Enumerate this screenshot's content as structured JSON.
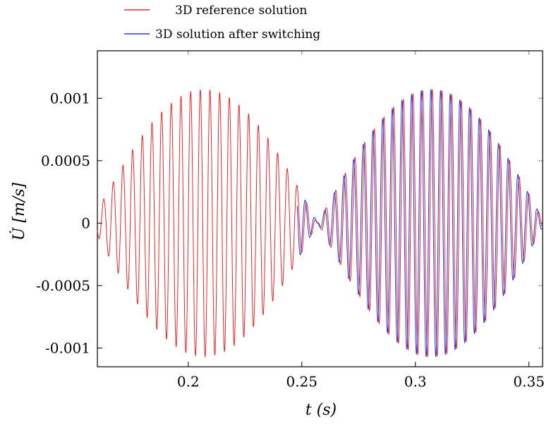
{
  "chart_data": {
    "type": "line",
    "xlabel": "t (s)",
    "ylabel": "U̇ [m/s]",
    "xlim": [
      0.16,
      0.356
    ],
    "ylim": [
      -0.00115,
      0.00138
    ],
    "x_ticks": [
      0.2,
      0.25,
      0.3,
      0.35
    ],
    "x_tick_labels": [
      "0.2",
      "0.25",
      "0.3",
      "0.35"
    ],
    "y_ticks": [
      0.001,
      0.0005,
      0,
      -0.0005,
      -0.001
    ],
    "y_tick_labels": [
      "0.001",
      "0.0005",
      "0",
      "-0.0005",
      "-0.001"
    ],
    "grid": "dotted ticks at top and right",
    "legend_position": "top-left, above plot",
    "series": [
      {
        "name": "3D reference solution",
        "color": "#e8262a",
        "x_range": [
          0.16,
          0.356
        ],
        "form": "amplified beat oscillation",
        "amplitude_peak": 0.00107,
        "peak_times": [
          0.207,
          0.307
        ],
        "node_time": 0.257,
        "cycles_per_second": 235
      },
      {
        "name": "3D solution after switching",
        "color": "#2a35e6",
        "x_range": [
          0.248,
          0.356
        ],
        "form": "amplified beat oscillation",
        "amplitude_peak": 0.00107,
        "peak_times": [
          0.307
        ],
        "node_time": 0.257,
        "cycles_per_second": 235
      }
    ]
  }
}
